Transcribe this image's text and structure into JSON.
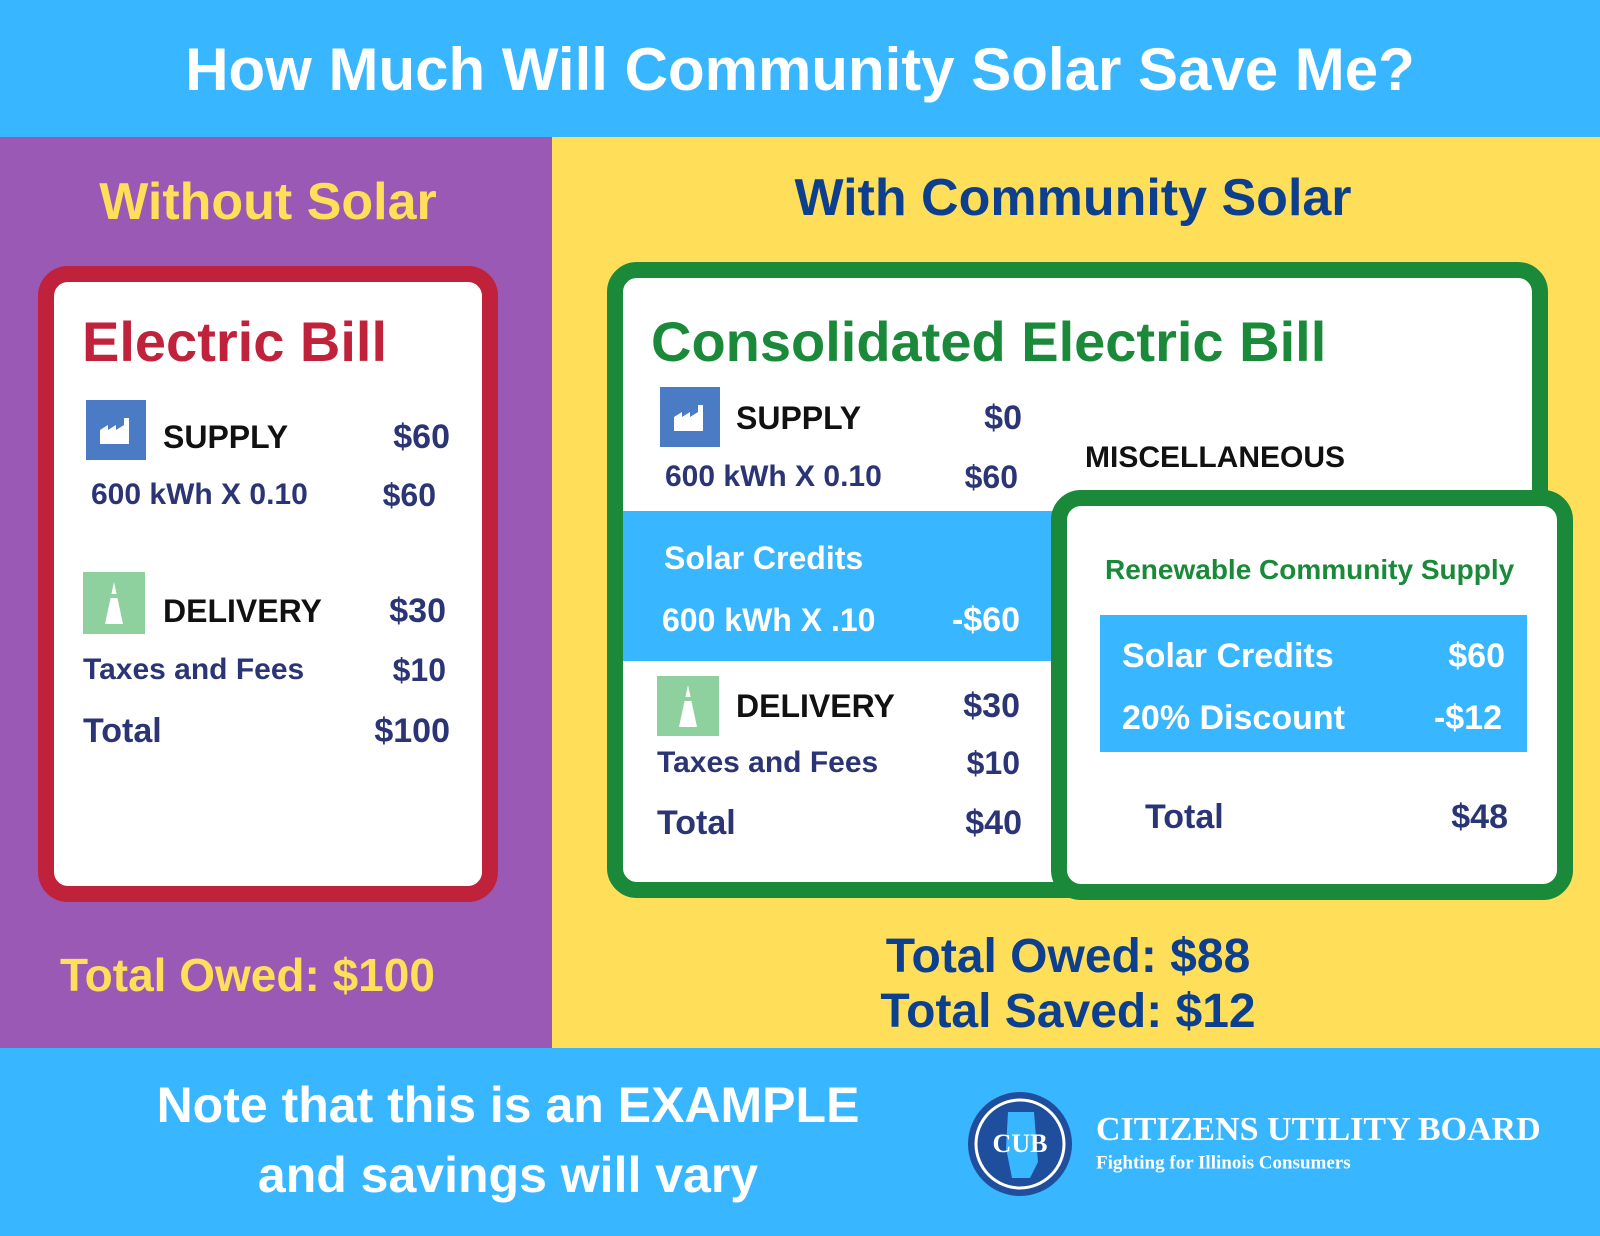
{
  "header": {
    "title": "How Much Will Community Solar Save Me?"
  },
  "without_solar": {
    "heading": "Without Solar",
    "bill": {
      "title": "Electric Bill",
      "supply": {
        "label": "SUPPLY",
        "amount": "$60"
      },
      "supply_detail": {
        "label": "600 kWh X 0.10",
        "amount": "$60"
      },
      "delivery": {
        "label": "DELIVERY",
        "amount": "$30"
      },
      "taxes": {
        "label": "Taxes and Fees",
        "amount": "$10"
      },
      "total": {
        "label": "Total",
        "amount": "$100"
      }
    },
    "total_owed": "Total Owed: $100"
  },
  "with_solar": {
    "heading": "With Community Solar",
    "bill": {
      "title": "Consolidated Electric Bill",
      "supply": {
        "label": "SUPPLY",
        "amount": "$0"
      },
      "supply_detail": {
        "label": "600 kWh X 0.10",
        "amount": "$60"
      },
      "miscellaneous": "MISCELLANEOUS",
      "solar_credits": {
        "label": "Solar Credits",
        "detail": "600 kWh X .10",
        "amount": "-$60"
      },
      "delivery": {
        "label": "DELIVERY",
        "amount": "$30"
      },
      "taxes": {
        "label": "Taxes and Fees",
        "amount": "$10"
      },
      "total": {
        "label": "Total",
        "amount": "$40"
      }
    },
    "community_supply": {
      "title": "Renewable Community Supply",
      "solar_credits": {
        "label": "Solar Credits",
        "amount": "$60"
      },
      "discount": {
        "label": "20% Discount",
        "amount": "-$12"
      },
      "total": {
        "label": "Total",
        "amount": "$48"
      }
    },
    "total_owed": "Total Owed: $88",
    "total_saved": "Total Saved: $12"
  },
  "footer": {
    "note": [
      "Note that this is an EXAMPLE",
      "and savings will vary"
    ],
    "logo": {
      "mark": "CUB",
      "name": "CITIZENS UTILITY BOARD",
      "tagline": "Fighting for Illinois Consumers"
    }
  }
}
